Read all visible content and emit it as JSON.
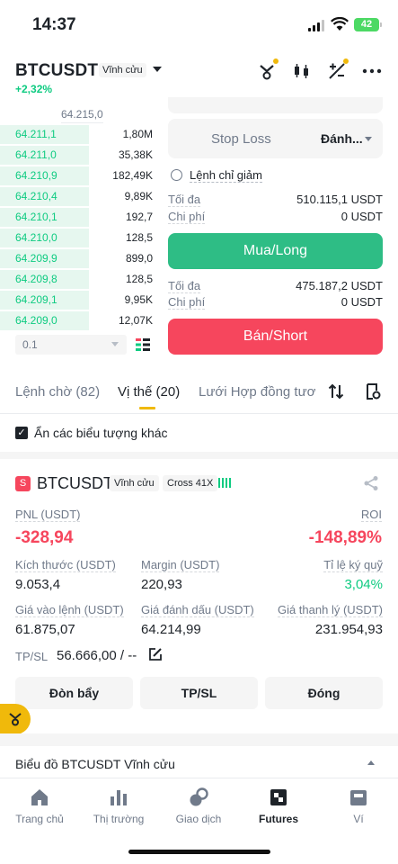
{
  "status": {
    "time": "14:37",
    "battery": "42"
  },
  "header": {
    "symbol": "BTCUSDT",
    "contract_type": "Vĩnh cửu",
    "change": "+2,32%"
  },
  "orderbook": {
    "header_price": "64.215,0",
    "rows": [
      {
        "price": "64.211,1",
        "qty": "1,80M",
        "depth": 0.55
      },
      {
        "price": "64.211,0",
        "qty": "35,38K",
        "depth": 0.55
      },
      {
        "price": "64.210,9",
        "qty": "182,49K",
        "depth": 0.55
      },
      {
        "price": "64.210,4",
        "qty": "9,89K",
        "depth": 0.55
      },
      {
        "price": "64.210,1",
        "qty": "192,7",
        "depth": 0.55
      },
      {
        "price": "64.210,0",
        "qty": "128,5",
        "depth": 0.55
      },
      {
        "price": "64.209,9",
        "qty": "899,0",
        "depth": 0.55
      },
      {
        "price": "64.209,8",
        "qty": "128,5",
        "depth": 0.55
      },
      {
        "price": "64.209,1",
        "qty": "9,95K",
        "depth": 0.55
      },
      {
        "price": "64.209,0",
        "qty": "12,07K",
        "depth": 0.55
      }
    ],
    "depth_step": "0.1"
  },
  "form": {
    "stop_loss_placeholder": "Stop Loss",
    "stop_loss_unit": "Đánh...",
    "reduce_only": "Lệnh chỉ giảm",
    "long_max_label": "Tối đa",
    "long_max_value": "510.115,1 USDT",
    "long_cost_label": "Chi phí",
    "long_cost_value": "0 USDT",
    "buy_button": "Mua/Long",
    "short_max_label": "Tối đa",
    "short_max_value": "475.187,2 USDT",
    "short_cost_label": "Chi phí",
    "short_cost_value": "0 USDT",
    "sell_button": "Bán/Short"
  },
  "tabs": {
    "open_orders": "Lệnh chờ (82)",
    "positions": "Vị thế (20)",
    "grid": "Lưới Hợp đồng tươ"
  },
  "hide_symbols": "Ẩn các biểu tượng khác",
  "position": {
    "side": "S",
    "symbol": "BTCUSDT",
    "contract_type": "Vĩnh cửu",
    "margin_mode": "Cross 41X",
    "pnl_label": "PNL (USDT)",
    "pnl_value": "-328,94",
    "roi_label": "ROI",
    "roi_value": "-148,89%",
    "size_label": "Kích thước (USDT)",
    "size_value": "9.053,4",
    "margin_label": "Margin (USDT)",
    "margin_value": "220,93",
    "margin_ratio_label": "Tỉ lệ ký quỹ",
    "margin_ratio_value": "3,04%",
    "entry_label": "Giá vào lệnh (USDT)",
    "entry_value": "61.875,07",
    "mark_label": "Giá đánh dấu (USDT)",
    "mark_value": "64.214,99",
    "liq_label": "Giá thanh lý (USDT)",
    "liq_value": "231.954,93",
    "tpsl_label": "TP/SL",
    "tpsl_value": "56.666,00 / --",
    "btn_leverage": "Đòn bẩy",
    "btn_tpsl": "TP/SL",
    "btn_close": "Đóng"
  },
  "chart_row": "Biểu đồ BTCUSDT Vĩnh cửu",
  "nav": {
    "home": "Trang chủ",
    "markets": "Thị trường",
    "trade": "Giao dịch",
    "futures": "Futures",
    "wallet": "Ví"
  },
  "colors": {
    "green": "#0ecb81",
    "red": "#f6465d",
    "yellow": "#f0b90b"
  }
}
